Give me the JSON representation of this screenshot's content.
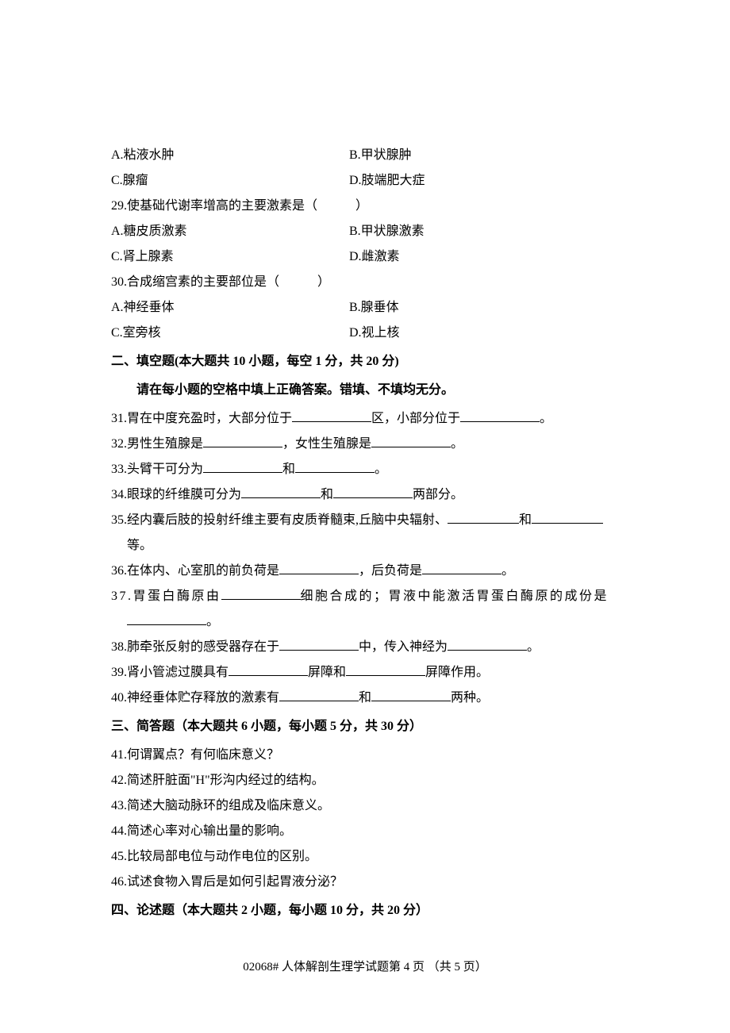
{
  "mc": {
    "q28": {
      "optA": "A.粘液水肿",
      "optB": "B.甲状腺肿",
      "optC": "C.腺瘤",
      "optD": "D.肢端肥大症"
    },
    "q29": {
      "stem": "29.使基础代谢率增高的主要激素是（　　　）",
      "optA": "A.糖皮质激素",
      "optB": "B.甲状腺激素",
      "optC": "C.肾上腺素",
      "optD": "D.雌激素"
    },
    "q30": {
      "stem": "30.合成缩宫素的主要部位是（　　　）",
      "optA": "A.神经垂体",
      "optB": "B.腺垂体",
      "optC": "C.室旁核",
      "optD": "D.视上核"
    }
  },
  "section2": {
    "header": "二、填空题(本大题共 10 小题，每空 1 分，共 20 分)",
    "sub": "请在每小题的空格中填上正确答案。错填、不填均无分。"
  },
  "fill": {
    "q31_a": "31.胃在中度充盈时，大部分位于",
    "q31_b": "区，小部分位于",
    "q31_c": "。",
    "q32_a": "32.男性生殖腺是",
    "q32_b": "，女性生殖腺是",
    "q32_c": "。",
    "q33_a": "33.头臂干可分为",
    "q33_b": "和",
    "q33_c": "。",
    "q34_a": "34.眼球的纤维膜可分为",
    "q34_b": "和",
    "q34_c": "两部分。",
    "q35_a": "35.经内囊后肢的投射纤维主要有皮质脊髓束,丘脑中央辐射、",
    "q35_b": "和",
    "q35_c": "等。",
    "q36_a": "36.在体内、心室肌的前负荷是",
    "q36_b": "，后负荷是",
    "q36_c": "。",
    "q37_a": "37.胃蛋白酶原由",
    "q37_b": "细胞合成的；胃液中能激活胃蛋白酶原的成份是",
    "q37_c": "。",
    "q38_a": "38.肺牵张反射的感受器存在于",
    "q38_b": "中，传入神经为",
    "q38_c": "。",
    "q39_a": "39.肾小管滤过膜具有",
    "q39_b": "屏障和",
    "q39_c": "屏障作用。",
    "q40_a": "40.神经垂体贮存释放的激素有",
    "q40_b": "和",
    "q40_c": "两种。"
  },
  "section3": {
    "header": "三、简答题（本大题共 6 小题，每小题 5 分，共 30 分）"
  },
  "short": {
    "q41": "41.何谓翼点？有何临床意义？",
    "q42": "42.简述肝脏面\"H\"形沟内经过的结构。",
    "q43": "43.简述大脑动脉环的组成及临床意义。",
    "q44": "44.简述心率对心输出量的影响。",
    "q45": "45.比较局部电位与动作电位的区别。",
    "q46": "46.试述食物入胃后是如何引起胃液分泌？"
  },
  "section4": {
    "header": "四、论述题（本大题共 2 小题，每小题 10 分，共 20 分）"
  },
  "footer": "02068#  人体解剖生理学试题第  4  页   （共  5  页）"
}
